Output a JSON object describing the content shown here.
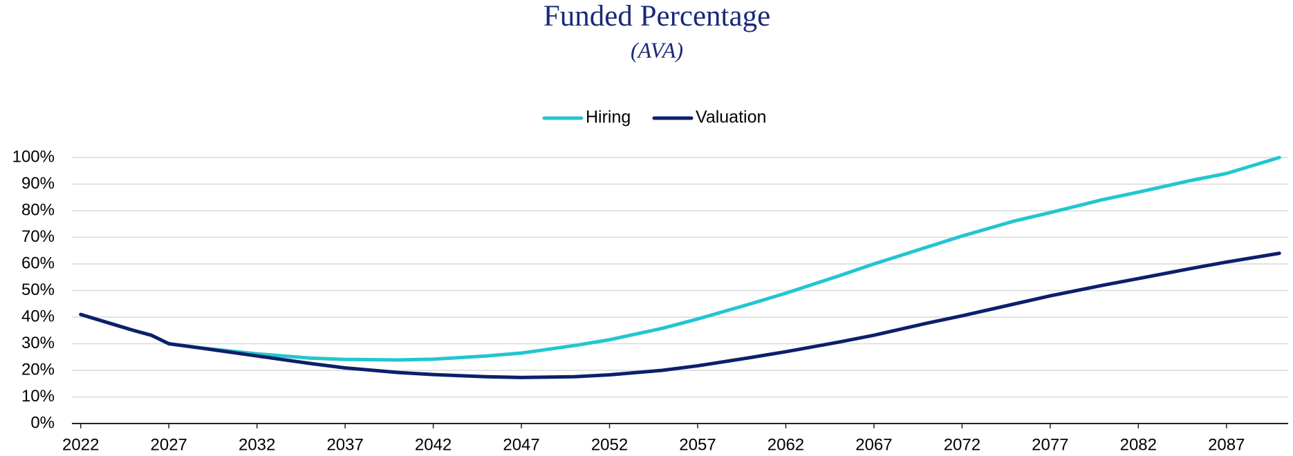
{
  "chart_data": {
    "type": "line",
    "title": "Funded Percentage",
    "subtitle": "(AVA)",
    "x": [
      2022,
      2023,
      2024,
      2025,
      2026,
      2027,
      2029,
      2032,
      2035,
      2037,
      2040,
      2042,
      2045,
      2047,
      2050,
      2052,
      2055,
      2057,
      2060,
      2062,
      2065,
      2067,
      2070,
      2072,
      2075,
      2077,
      2080,
      2082,
      2085,
      2087,
      2090
    ],
    "series": [
      {
        "name": "Hiring",
        "color": "#22c6cf",
        "values": [
          41,
          39,
          37,
          35,
          33.2,
          30,
          28.3,
          26.2,
          24.6,
          24.1,
          23.9,
          24.2,
          25.4,
          26.5,
          29.3,
          31.5,
          35.8,
          39.3,
          45,
          49,
          55.5,
          60,
          66.3,
          70.5,
          76.2,
          79.3,
          84.2,
          87,
          91.4,
          94,
          100
        ]
      },
      {
        "name": "Valuation",
        "color": "#0d1f6b",
        "values": [
          41,
          39,
          37,
          35,
          33.2,
          30,
          28.2,
          25.4,
          22.6,
          20.9,
          19.2,
          18.4,
          17.6,
          17.3,
          17.6,
          18.3,
          20,
          21.7,
          24.8,
          27,
          30.6,
          33.2,
          37.7,
          40.5,
          45,
          48,
          52,
          54.5,
          58.3,
          60.7,
          64
        ]
      }
    ],
    "xlim": [
      2021.5,
      2090.5
    ],
    "xticks": [
      2022,
      2027,
      2032,
      2037,
      2042,
      2047,
      2052,
      2057,
      2062,
      2067,
      2072,
      2077,
      2082,
      2087
    ],
    "ylim": [
      0,
      100
    ],
    "yticks": [
      {
        "value": 0,
        "label": "0%"
      },
      {
        "value": 10,
        "label": "10%"
      },
      {
        "value": 20,
        "label": "20%"
      },
      {
        "value": 30,
        "label": "30%"
      },
      {
        "value": 40,
        "label": "40%"
      },
      {
        "value": 50,
        "label": "50%"
      },
      {
        "value": 60,
        "label": "60%"
      },
      {
        "value": 70,
        "label": "70%"
      },
      {
        "value": 80,
        "label": "80%"
      },
      {
        "value": 90,
        "label": "90%"
      },
      {
        "value": 100,
        "label": "100%"
      }
    ],
    "grid": true,
    "legend": "top"
  }
}
